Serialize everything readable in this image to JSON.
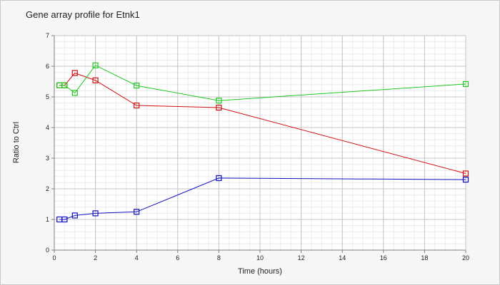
{
  "chart_data": {
    "type": "line",
    "title": "Gene array profile for Etnk1",
    "xlabel": "Time (hours)",
    "ylabel": "Ratio to Ctrl",
    "xlim": [
      0,
      20
    ],
    "ylim": [
      0,
      7
    ],
    "x_ticks": [
      0,
      2,
      4,
      6,
      8,
      10,
      12,
      14,
      16,
      18,
      20
    ],
    "y_ticks": [
      0,
      1,
      2,
      3,
      4,
      5,
      6,
      7
    ],
    "grid": true,
    "legend": "none",
    "series": [
      {
        "color": "#d01010",
        "x": [
          0.25,
          0.5,
          1,
          2,
          4,
          8,
          20
        ],
        "y": [
          5.38,
          5.38,
          5.78,
          5.54,
          4.72,
          4.65,
          2.5
        ]
      },
      {
        "color": "#20c820",
        "x": [
          0.25,
          0.5,
          1,
          2,
          4,
          8,
          20
        ],
        "y": [
          5.38,
          5.38,
          5.13,
          6.03,
          5.37,
          4.88,
          5.42
        ]
      },
      {
        "color": "#1010c0",
        "x": [
          0.25,
          0.5,
          1,
          2,
          4,
          8,
          20
        ],
        "y": [
          1.0,
          1.0,
          1.13,
          1.2,
          1.25,
          2.35,
          2.3
        ]
      }
    ]
  }
}
